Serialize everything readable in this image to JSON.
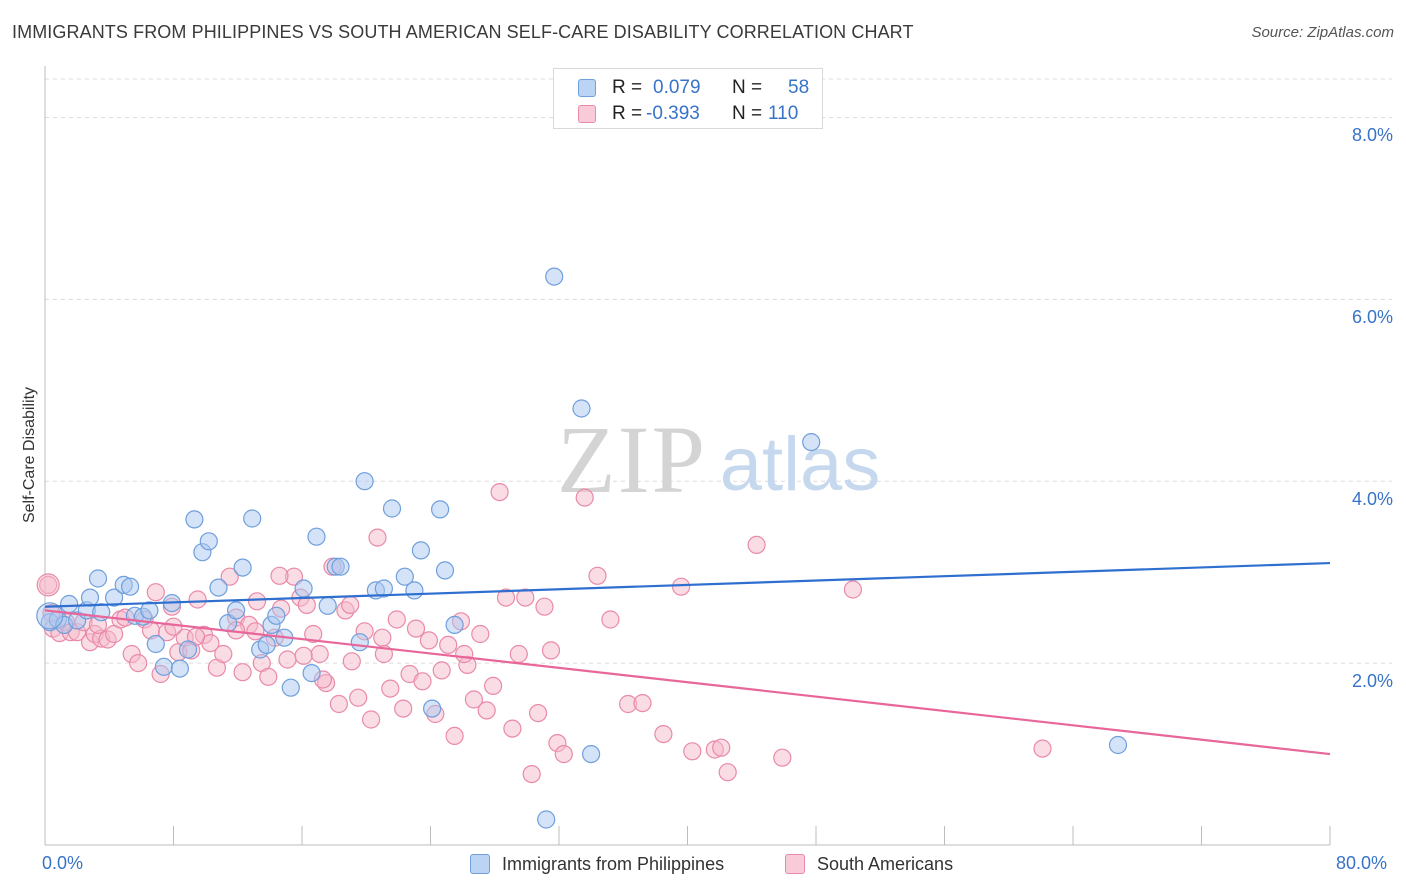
{
  "header": {
    "title": "IMMIGRANTS FROM PHILIPPINES VS SOUTH AMERICAN SELF-CARE DISABILITY CORRELATION CHART",
    "source": "Source: ZipAtlas.com"
  },
  "watermark": {
    "zip": "ZIP",
    "atlas": "atlas"
  },
  "legend": {
    "rows": [
      {
        "r_label": "R =",
        "r_value": "0.079",
        "n_label": "N =",
        "n_value": "58"
      },
      {
        "r_label": "R =",
        "r_value": "-0.393",
        "n_label": "N =",
        "n_value": "110"
      }
    ]
  },
  "colors": {
    "blue_fill": "#a9c8f0",
    "blue_stroke": "#6f9fdc",
    "blue_line": "#2f6fcf",
    "pink_fill": "#f6b9cc",
    "pink_stroke": "#e98aa8",
    "pink_line": "#e8669a",
    "tick_text": "#3873c8"
  },
  "chart_data": {
    "type": "scatter",
    "title": "IMMIGRANTS FROM PHILIPPINES VS SOUTH AMERICAN SELF-CARE DISABILITY CORRELATION CHART",
    "xlabel": "",
    "ylabel": "Self-Care Disability",
    "xlim": [
      0,
      80
    ],
    "ylim": [
      0,
      8.5
    ],
    "x_tick_labels": [
      "0.0%",
      "80.0%"
    ],
    "y_ticks": [
      2,
      4,
      6,
      8
    ],
    "y_tick_labels": [
      "2.0%",
      "4.0%",
      "6.0%",
      "8.0%"
    ],
    "grid": "horizontal dashed",
    "legend_position": "bottom",
    "series": [
      {
        "name": "Immigrants from Philippines",
        "color": "#a9c8f0",
        "trend": {
          "x": [
            0,
            80
          ],
          "y": [
            2.62,
            3.1
          ]
        },
        "points": [
          [
            0.3,
            2.45
          ],
          [
            0.8,
            2.48
          ],
          [
            1.2,
            2.42
          ],
          [
            1.5,
            2.65
          ],
          [
            2.0,
            2.47
          ],
          [
            2.6,
            2.58
          ],
          [
            3.3,
            2.93
          ],
          [
            3.5,
            2.56
          ],
          [
            4.3,
            2.72
          ],
          [
            4.9,
            2.86
          ],
          [
            5.3,
            2.84
          ],
          [
            5.6,
            2.52
          ],
          [
            6.1,
            2.51
          ],
          [
            6.5,
            2.58
          ],
          [
            6.9,
            2.21
          ],
          [
            7.4,
            1.96
          ],
          [
            7.9,
            2.66
          ],
          [
            8.4,
            1.94
          ],
          [
            8.9,
            2.15
          ],
          [
            9.3,
            3.58
          ],
          [
            9.8,
            3.22
          ],
          [
            10.2,
            3.34
          ],
          [
            10.8,
            2.83
          ],
          [
            11.4,
            2.44
          ],
          [
            11.9,
            2.58
          ],
          [
            12.3,
            3.05
          ],
          [
            12.9,
            3.59
          ],
          [
            13.4,
            2.15
          ],
          [
            13.8,
            2.2
          ],
          [
            14.1,
            2.42
          ],
          [
            14.4,
            2.52
          ],
          [
            14.9,
            2.28
          ],
          [
            15.3,
            1.73
          ],
          [
            16.1,
            2.82
          ],
          [
            16.6,
            1.89
          ],
          [
            16.9,
            3.39
          ],
          [
            17.6,
            2.63
          ],
          [
            18.1,
            3.06
          ],
          [
            18.4,
            3.06
          ],
          [
            19.6,
            2.23
          ],
          [
            19.9,
            4.0
          ],
          [
            20.6,
            2.8
          ],
          [
            21.1,
            2.82
          ],
          [
            21.6,
            3.7
          ],
          [
            22.4,
            2.95
          ],
          [
            23.0,
            2.8
          ],
          [
            23.4,
            3.24
          ],
          [
            24.1,
            1.5
          ],
          [
            24.6,
            3.69
          ],
          [
            24.9,
            3.02
          ],
          [
            25.5,
            2.42
          ],
          [
            31.7,
            6.25
          ],
          [
            33.4,
            4.8
          ],
          [
            34.0,
            1.0
          ],
          [
            47.7,
            4.43
          ],
          [
            66.8,
            1.1
          ],
          [
            31.2,
            0.28
          ],
          [
            2.8,
            2.72
          ]
        ]
      },
      {
        "name": "South Americans",
        "color": "#f6b9cc",
        "trend": {
          "x": [
            0,
            80
          ],
          "y": [
            2.58,
            1.0
          ]
        },
        "points": [
          [
            0.2,
            2.86
          ],
          [
            0.5,
            2.38
          ],
          [
            0.9,
            2.33
          ],
          [
            1.3,
            2.45
          ],
          [
            1.6,
            2.34
          ],
          [
            2.0,
            2.34
          ],
          [
            2.4,
            2.45
          ],
          [
            2.8,
            2.23
          ],
          [
            3.1,
            2.32
          ],
          [
            3.5,
            2.27
          ],
          [
            3.9,
            2.26
          ],
          [
            4.3,
            2.32
          ],
          [
            4.7,
            2.48
          ],
          [
            5.0,
            2.5
          ],
          [
            5.4,
            2.1
          ],
          [
            5.8,
            2.0
          ],
          [
            6.2,
            2.48
          ],
          [
            6.6,
            2.36
          ],
          [
            6.9,
            2.78
          ],
          [
            7.2,
            1.88
          ],
          [
            7.6,
            2.34
          ],
          [
            7.9,
            2.62
          ],
          [
            8.3,
            2.12
          ],
          [
            8.7,
            2.28
          ],
          [
            9.1,
            2.14
          ],
          [
            9.5,
            2.7
          ],
          [
            9.9,
            2.31
          ],
          [
            10.3,
            2.22
          ],
          [
            10.7,
            1.95
          ],
          [
            11.1,
            2.1
          ],
          [
            11.5,
            2.95
          ],
          [
            11.9,
            2.5
          ],
          [
            12.3,
            1.9
          ],
          [
            12.7,
            2.42
          ],
          [
            13.1,
            2.35
          ],
          [
            13.5,
            2.0
          ],
          [
            13.9,
            1.85
          ],
          [
            14.3,
            2.28
          ],
          [
            14.7,
            2.6
          ],
          [
            15.1,
            2.04
          ],
          [
            15.5,
            2.95
          ],
          [
            15.9,
            2.72
          ],
          [
            16.3,
            2.64
          ],
          [
            16.7,
            2.32
          ],
          [
            17.1,
            2.1
          ],
          [
            17.5,
            1.78
          ],
          [
            17.9,
            3.06
          ],
          [
            18.3,
            1.55
          ],
          [
            18.7,
            2.58
          ],
          [
            19.1,
            2.02
          ],
          [
            19.5,
            1.62
          ],
          [
            19.9,
            2.35
          ],
          [
            20.3,
            1.38
          ],
          [
            20.7,
            3.38
          ],
          [
            21.1,
            2.1
          ],
          [
            21.5,
            1.72
          ],
          [
            21.9,
            2.48
          ],
          [
            22.3,
            1.5
          ],
          [
            22.7,
            1.88
          ],
          [
            23.1,
            2.38
          ],
          [
            23.5,
            1.8
          ],
          [
            23.9,
            2.25
          ],
          [
            24.3,
            1.44
          ],
          [
            24.7,
            1.92
          ],
          [
            25.1,
            2.2
          ],
          [
            25.5,
            1.2
          ],
          [
            25.9,
            2.46
          ],
          [
            26.3,
            1.98
          ],
          [
            26.7,
            1.6
          ],
          [
            27.1,
            2.32
          ],
          [
            27.5,
            1.48
          ],
          [
            27.9,
            1.75
          ],
          [
            28.3,
            3.88
          ],
          [
            28.7,
            2.72
          ],
          [
            29.1,
            1.28
          ],
          [
            29.5,
            2.1
          ],
          [
            29.9,
            2.72
          ],
          [
            30.3,
            0.78
          ],
          [
            30.7,
            1.45
          ],
          [
            31.1,
            2.62
          ],
          [
            31.5,
            2.14
          ],
          [
            31.9,
            1.12
          ],
          [
            32.3,
            1.0
          ],
          [
            33.6,
            3.82
          ],
          [
            34.4,
            2.96
          ],
          [
            35.2,
            2.48
          ],
          [
            36.3,
            1.55
          ],
          [
            37.2,
            1.56
          ],
          [
            38.5,
            1.22
          ],
          [
            39.6,
            2.84
          ],
          [
            40.3,
            1.03
          ],
          [
            41.7,
            1.05
          ],
          [
            42.1,
            1.07
          ],
          [
            42.5,
            0.8
          ],
          [
            44.3,
            3.3
          ],
          [
            45.9,
            0.96
          ],
          [
            50.3,
            2.81
          ],
          [
            62.1,
            1.06
          ],
          [
            16.1,
            2.08
          ],
          [
            14.6,
            2.96
          ],
          [
            11.9,
            2.36
          ],
          [
            19.0,
            2.64
          ],
          [
            21.0,
            2.28
          ],
          [
            26.1,
            2.1
          ],
          [
            0.4,
            2.55
          ],
          [
            3.3,
            2.42
          ],
          [
            8.0,
            2.4
          ],
          [
            9.4,
            2.29
          ],
          [
            13.2,
            2.68
          ],
          [
            17.3,
            1.82
          ]
        ]
      }
    ]
  },
  "bottom_legend": {
    "items": [
      {
        "label": "Immigrants from Philippines"
      },
      {
        "label": "South Americans"
      }
    ]
  }
}
